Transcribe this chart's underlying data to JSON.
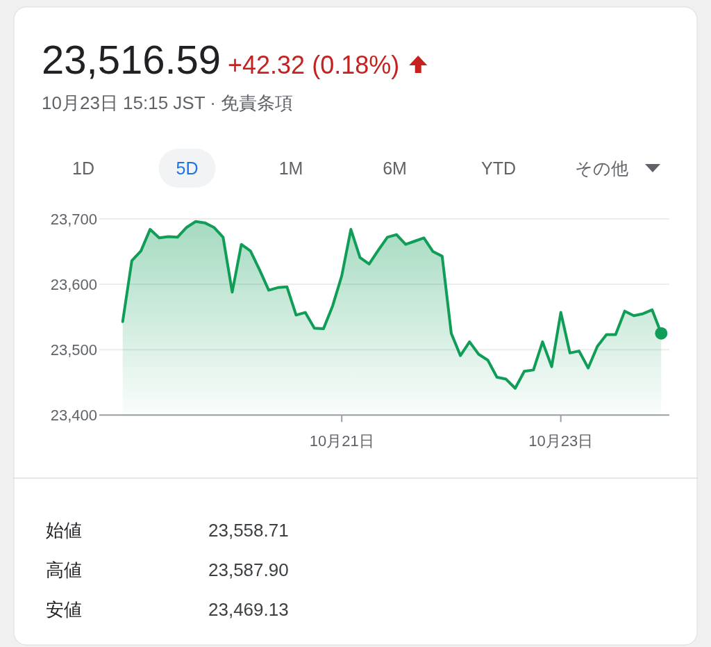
{
  "chart_data": {
    "type": "area",
    "title": "23,516.59",
    "subtitle": "+42.32 (0.18%)",
    "annotations": [
      "10月23日 15:15 JST · 免責条項",
      "1D",
      "5D",
      "1M",
      "6M",
      "YTD",
      "その他",
      "始値",
      "23,558.71",
      "高値",
      "23,587.90",
      "安値",
      "23,469.13"
    ],
    "categories": [
      null,
      null,
      null,
      null,
      null,
      null,
      null,
      null,
      null,
      null,
      null,
      null,
      null,
      null,
      null,
      null,
      null,
      null,
      null,
      null,
      null,
      null,
      null,
      null,
      "10月21日",
      null,
      null,
      null,
      null,
      null,
      null,
      null,
      null,
      null,
      null,
      null,
      null,
      null,
      null,
      null,
      null,
      null,
      null,
      null,
      null,
      null,
      null,
      null,
      "10月23日",
      null,
      null,
      null,
      null,
      null,
      null,
      null,
      null,
      null,
      null,
      null
    ],
    "series": [
      {
        "color": "#0f9d58",
        "values": [
          23543,
          23636,
          23651,
          23684,
          23671,
          23673,
          23672,
          23687,
          23696,
          23694,
          23687,
          23672,
          23588,
          23661,
          23651,
          23622,
          23591,
          23595,
          23596,
          23553,
          23557,
          23533,
          23532,
          23567,
          23613,
          23684,
          23641,
          23631,
          23652,
          23672,
          23676,
          23661,
          23666,
          23671,
          23650,
          23643,
          23525,
          23491,
          23512,
          23493,
          23484,
          23458,
          23455,
          23441,
          23467,
          23469,
          23512,
          23474,
          23557,
          23495,
          23498,
          23472,
          23505,
          23523,
          23523,
          23559,
          23552,
          23555,
          23561,
          23525
        ]
      },
      {
        "type": "scatter",
        "color": "#0f9d58",
        "values": [
          null,
          null,
          null,
          null,
          null,
          null,
          null,
          null,
          null,
          null,
          null,
          null,
          null,
          null,
          null,
          null,
          null,
          null,
          null,
          null,
          null,
          null,
          null,
          null,
          null,
          null,
          null,
          null,
          null,
          null,
          null,
          null,
          null,
          null,
          null,
          null,
          null,
          null,
          null,
          null,
          null,
          null,
          null,
          null,
          null,
          null,
          null,
          null,
          null,
          null,
          null,
          null,
          null,
          null,
          null,
          null,
          null,
          null,
          null,
          23525
        ]
      }
    ],
    "ylim": [
      23400,
      23700
    ],
    "yticks": [
      {
        "value": 23400,
        "label": "23,400"
      },
      {
        "value": 23500,
        "label": "23,500"
      },
      {
        "value": 23600,
        "label": "23,600"
      },
      {
        "value": 23700,
        "label": "23,700"
      }
    ],
    "grid": "y"
  }
}
